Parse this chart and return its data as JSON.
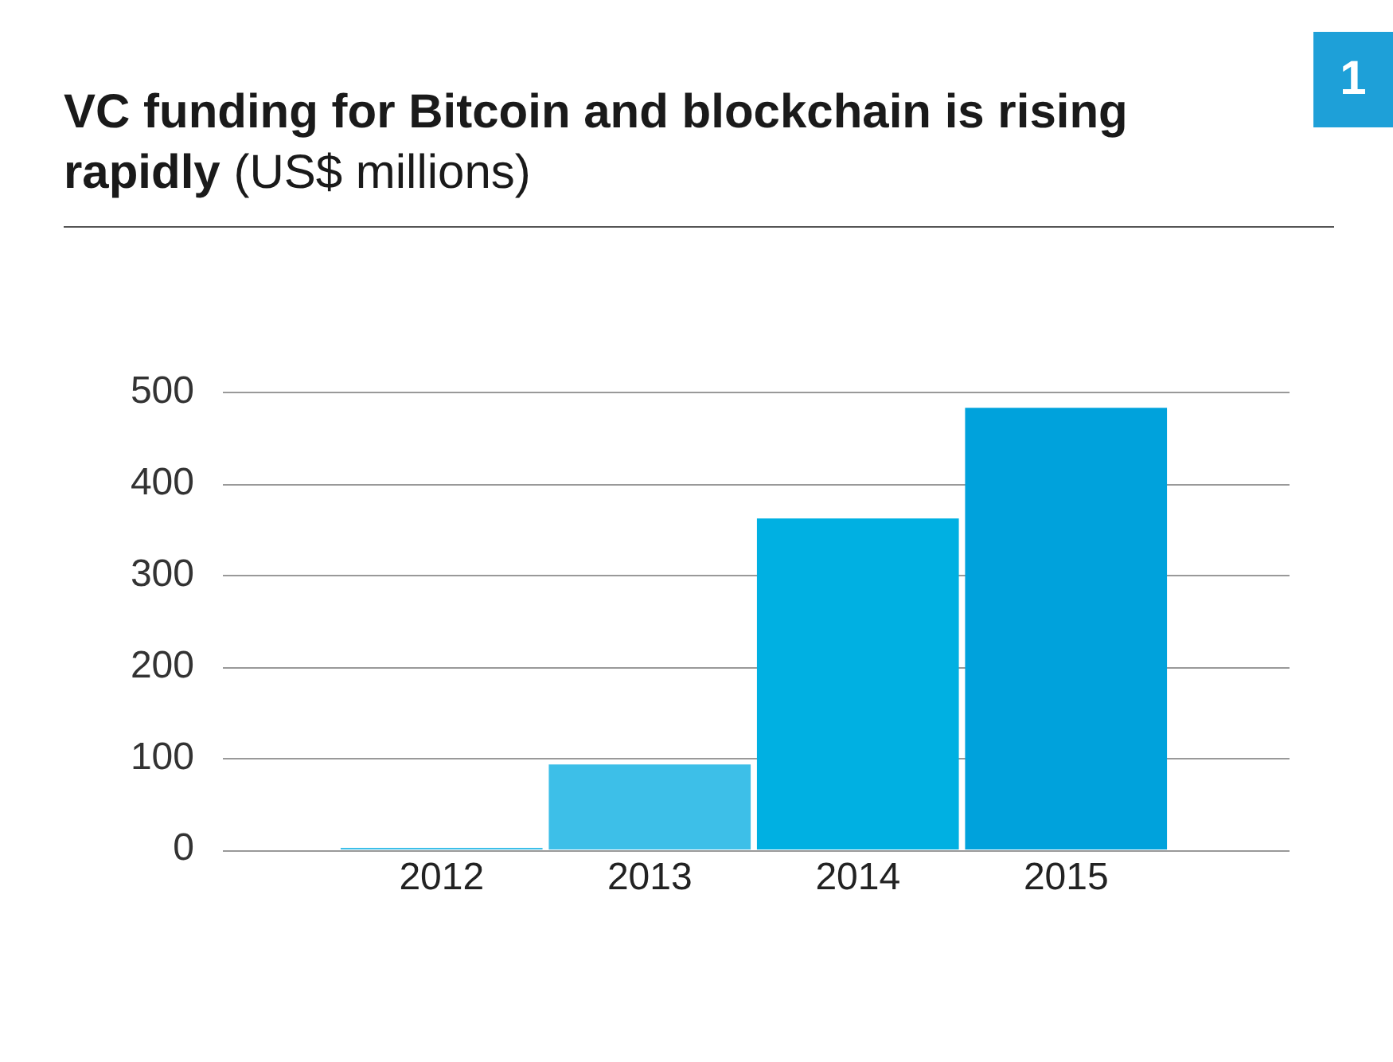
{
  "chart_data": {
    "type": "bar",
    "title": "VC funding for Bitcoin and blockchain is rising rapidly",
    "subtitle": "(US$ millions)",
    "categories": [
      "2012",
      "2013",
      "2014",
      "2015"
    ],
    "values": [
      2,
      93,
      362,
      483
    ],
    "colors": [
      "#3dbfe8",
      "#3dbfe8",
      "#00b0e2",
      "#00a2dc"
    ],
    "ylim": [
      0,
      500
    ],
    "yticks": [
      0,
      100,
      200,
      300,
      400,
      500
    ],
    "grid": "y",
    "annotations": [
      "1"
    ]
  }
}
